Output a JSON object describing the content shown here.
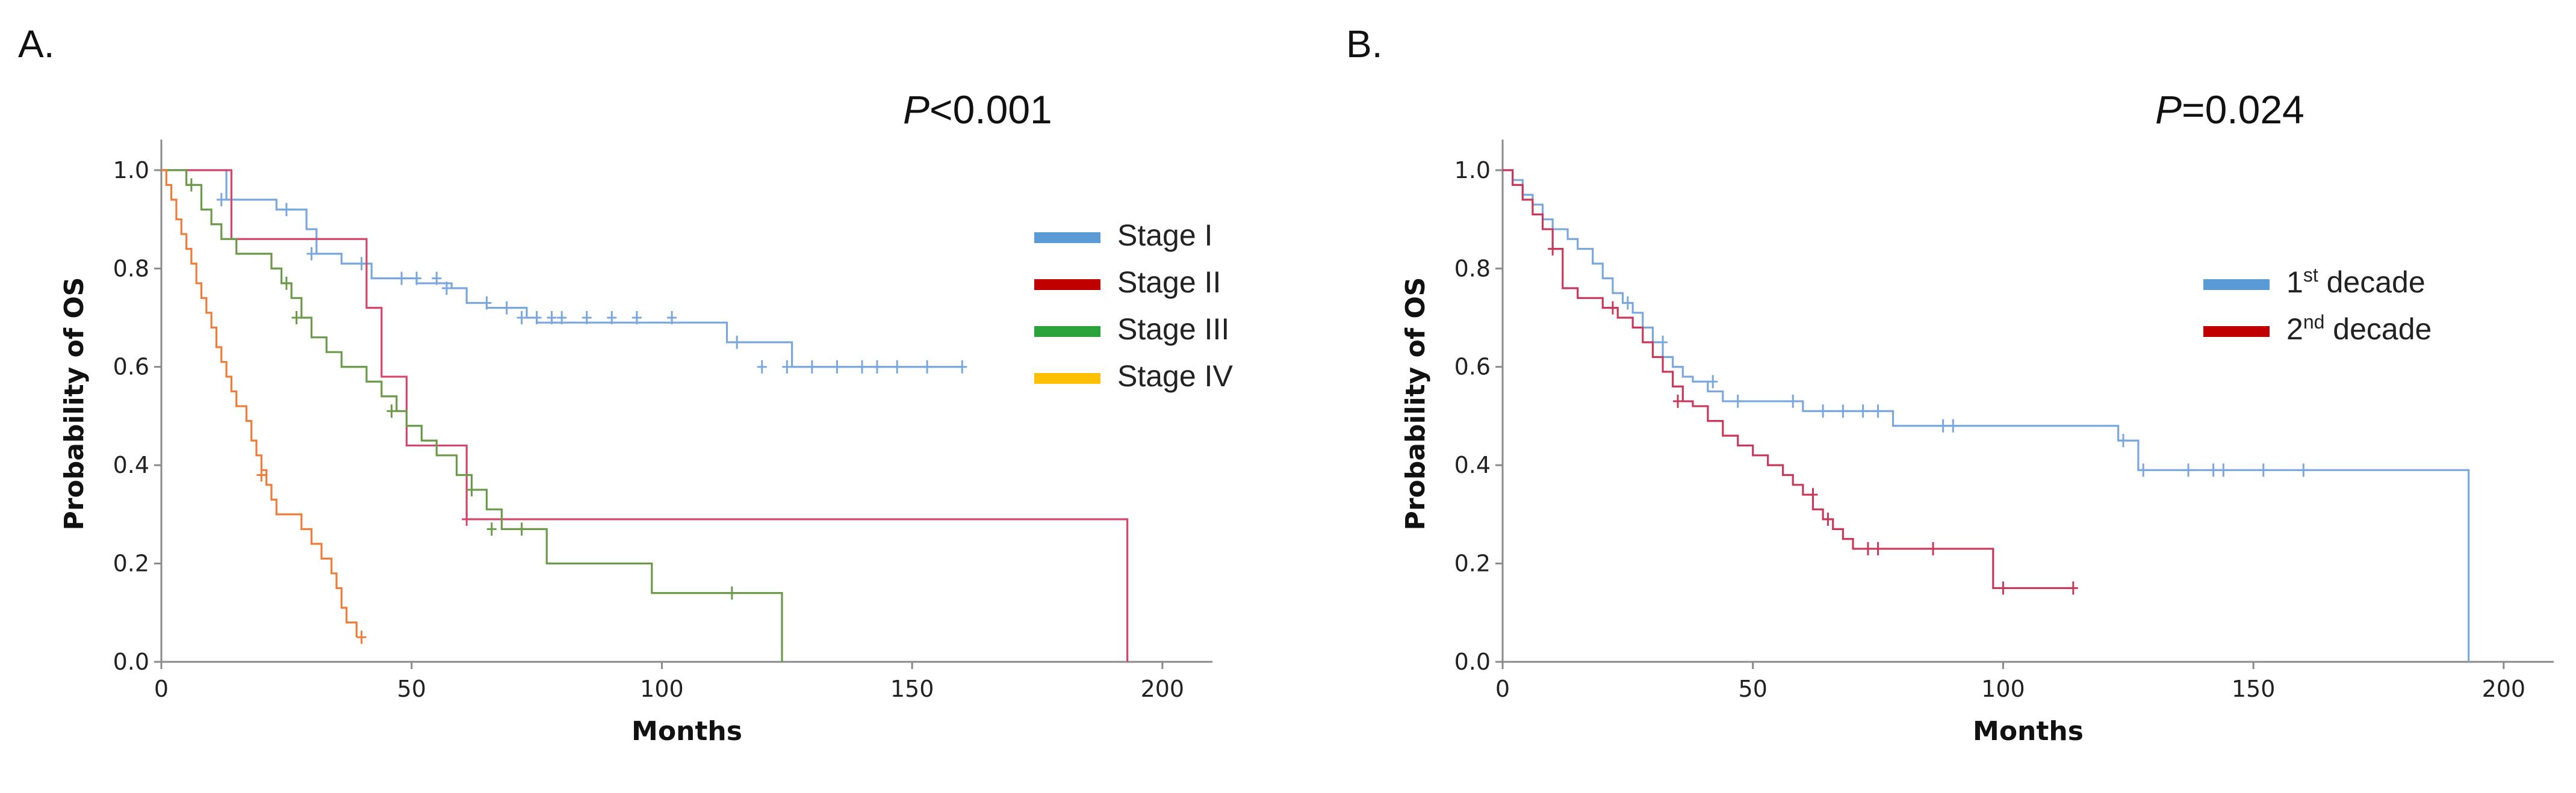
{
  "chart_data": [
    {
      "type": "line",
      "panel_label": "A.",
      "p_value": {
        "prefix": "P",
        "text": "<0.001"
      },
      "xlabel": "Months",
      "ylabel": "Probability of OS",
      "xlim": [
        0,
        210
      ],
      "ylim": [
        0,
        1.05
      ],
      "xticks": [
        "0",
        "50",
        "100",
        "150",
        "200"
      ],
      "yticks": [
        "0.0",
        "0.2",
        "0.4",
        "0.6",
        "0.8",
        "1.0"
      ],
      "legend": [
        {
          "name": "Stage I",
          "legend_color": "#5b9bd5"
        },
        {
          "name": "Stage II",
          "legend_color": "#c00000"
        },
        {
          "name": "Stage III",
          "legend_color": "#2aa33a"
        },
        {
          "name": "Stage IV",
          "legend_color": "#ffc000"
        }
      ],
      "series": [
        {
          "name": "Stage I",
          "color": "#7aa8dc",
          "x": [
            0,
            13,
            18,
            23,
            29,
            31,
            36,
            42,
            51,
            58,
            61,
            65,
            73,
            75,
            113,
            126,
            160
          ],
          "y": [
            1.0,
            0.94,
            0.94,
            0.92,
            0.88,
            0.83,
            0.81,
            0.78,
            0.77,
            0.76,
            0.73,
            0.72,
            0.7,
            0.69,
            0.65,
            0.6,
            0.6
          ],
          "censor_x": [
            12,
            25,
            30,
            40,
            48,
            51,
            55,
            57,
            65,
            69,
            72,
            75,
            78,
            80,
            85,
            90,
            95,
            102,
            115,
            120,
            125,
            130,
            135,
            140,
            143,
            147,
            153,
            160
          ],
          "censor_y": [
            0.94,
            0.92,
            0.83,
            0.81,
            0.78,
            0.78,
            0.78,
            0.76,
            0.73,
            0.72,
            0.7,
            0.7,
            0.7,
            0.7,
            0.7,
            0.7,
            0.7,
            0.7,
            0.65,
            0.6,
            0.6,
            0.6,
            0.6,
            0.6,
            0.6,
            0.6,
            0.6,
            0.6
          ]
        },
        {
          "name": "Stage II",
          "color": "#d6456a",
          "x": [
            0,
            14,
            41,
            44,
            49,
            61,
            193
          ],
          "y": [
            1.0,
            0.86,
            0.72,
            0.58,
            0.44,
            0.29,
            0.0
          ],
          "censor_x": [
            61
          ],
          "censor_y": [
            0.29
          ]
        },
        {
          "name": "Stage III",
          "color": "#6a9a4a",
          "x": [
            0,
            5,
            8,
            10,
            12,
            15,
            18,
            22,
            24,
            26,
            28,
            30,
            33,
            36,
            41,
            44,
            47,
            49,
            52,
            55,
            59,
            62,
            65,
            68,
            77,
            98,
            124
          ],
          "y": [
            1.0,
            0.97,
            0.92,
            0.89,
            0.86,
            0.83,
            0.83,
            0.8,
            0.77,
            0.74,
            0.7,
            0.66,
            0.63,
            0.6,
            0.57,
            0.54,
            0.51,
            0.48,
            0.45,
            0.42,
            0.38,
            0.35,
            0.31,
            0.27,
            0.2,
            0.14,
            0.0
          ],
          "censor_x": [
            6,
            25,
            27,
            46,
            62,
            66,
            72,
            114
          ],
          "censor_y": [
            0.97,
            0.77,
            0.7,
            0.51,
            0.35,
            0.27,
            0.27,
            0.14
          ]
        },
        {
          "name": "Stage IV",
          "color": "#f07c3a",
          "x": [
            0,
            1,
            2,
            3,
            4,
            5,
            6,
            7,
            8,
            9,
            10,
            11,
            12,
            13,
            14,
            15,
            16,
            17,
            18,
            19,
            20,
            21,
            22,
            23,
            24,
            26,
            28,
            30,
            32,
            34,
            35,
            36,
            37,
            39
          ],
          "y": [
            1.0,
            0.97,
            0.94,
            0.9,
            0.87,
            0.84,
            0.81,
            0.77,
            0.74,
            0.71,
            0.68,
            0.64,
            0.61,
            0.58,
            0.55,
            0.52,
            0.52,
            0.49,
            0.45,
            0.42,
            0.39,
            0.36,
            0.33,
            0.3,
            0.3,
            0.3,
            0.27,
            0.24,
            0.21,
            0.18,
            0.15,
            0.11,
            0.08,
            0.05
          ],
          "censor_x": [
            20,
            40
          ],
          "censor_y": [
            0.38,
            0.05
          ]
        }
      ]
    },
    {
      "type": "line",
      "panel_label": "B.",
      "p_value": {
        "prefix": "P",
        "text": "=0.024"
      },
      "xlabel": "Months",
      "ylabel": "Probability of OS",
      "xlim": [
        0,
        210
      ],
      "ylim": [
        0,
        1.05
      ],
      "xticks": [
        "0",
        "50",
        "100",
        "150",
        "200"
      ],
      "yticks": [
        "0.0",
        "0.2",
        "0.4",
        "0.6",
        "0.8",
        "1.0"
      ],
      "legend": [
        {
          "name": "1st decade",
          "base": "1",
          "sup": "st",
          "rest": " decade",
          "legend_color": "#5b9bd5"
        },
        {
          "name": "2nd decade",
          "base": "2",
          "sup": "nd",
          "rest": " decade",
          "legend_color": "#c00000"
        }
      ],
      "series": [
        {
          "name": "1st decade",
          "color": "#7aa8dc",
          "x": [
            0,
            2,
            4,
            6,
            8,
            10,
            13,
            15,
            18,
            20,
            22,
            24,
            26,
            28,
            30,
            32,
            34,
            36,
            38,
            41,
            44,
            47,
            60,
            78,
            123,
            127,
            193
          ],
          "y": [
            1.0,
            0.98,
            0.95,
            0.93,
            0.9,
            0.88,
            0.86,
            0.84,
            0.81,
            0.78,
            0.75,
            0.73,
            0.71,
            0.68,
            0.65,
            0.62,
            0.6,
            0.58,
            0.57,
            0.55,
            0.53,
            0.53,
            0.51,
            0.48,
            0.45,
            0.39,
            0.0
          ],
          "censor_x": [
            25,
            32,
            42,
            47,
            58,
            64,
            68,
            72,
            75,
            88,
            90,
            124,
            128,
            137,
            142,
            144,
            152,
            160
          ],
          "censor_y": [
            0.73,
            0.65,
            0.57,
            0.53,
            0.53,
            0.51,
            0.51,
            0.51,
            0.51,
            0.48,
            0.48,
            0.45,
            0.39,
            0.39,
            0.39,
            0.39,
            0.39,
            0.39
          ]
        },
        {
          "name": "2nd decade",
          "color": "#c8385a",
          "x": [
            0,
            2,
            4,
            6,
            8,
            10,
            12,
            15,
            20,
            23,
            26,
            28,
            30,
            32,
            34,
            36,
            38,
            41,
            44,
            47,
            50,
            53,
            56,
            58,
            60,
            62,
            64,
            66,
            68,
            70,
            72,
            98,
            114
          ],
          "y": [
            1.0,
            0.97,
            0.94,
            0.91,
            0.88,
            0.84,
            0.76,
            0.74,
            0.72,
            0.7,
            0.68,
            0.65,
            0.62,
            0.59,
            0.56,
            0.53,
            0.52,
            0.49,
            0.46,
            0.44,
            0.42,
            0.4,
            0.38,
            0.36,
            0.34,
            0.31,
            0.29,
            0.27,
            0.25,
            0.23,
            0.23,
            0.15,
            0.15
          ],
          "censor_x": [
            10,
            22,
            35,
            62,
            65,
            73,
            75,
            86,
            100,
            114
          ],
          "censor_y": [
            0.84,
            0.72,
            0.53,
            0.34,
            0.29,
            0.23,
            0.23,
            0.23,
            0.15,
            0.15
          ]
        }
      ]
    }
  ]
}
